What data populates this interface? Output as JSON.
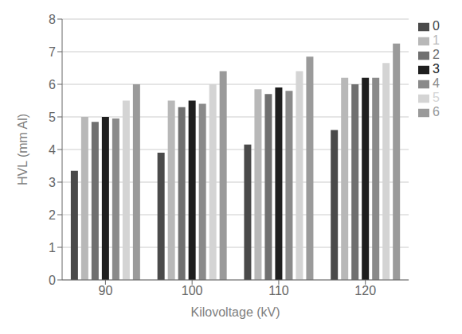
{
  "chart_data": {
    "type": "bar",
    "xlabel": "Kilovoltage (kV)",
    "ylabel": "HVL (mm Al)",
    "categories": [
      "90",
      "100",
      "110",
      "120"
    ],
    "series": [
      {
        "name": "0",
        "color": "#4a4a4a",
        "values": [
          3.35,
          3.9,
          4.15,
          4.6
        ]
      },
      {
        "name": "1",
        "color": "#b8b8b8",
        "values": [
          5.0,
          5.5,
          5.85,
          6.2
        ]
      },
      {
        "name": "2",
        "color": "#707070",
        "values": [
          4.85,
          5.3,
          5.7,
          6.0
        ]
      },
      {
        "name": "3",
        "color": "#1e1e1e",
        "values": [
          5.0,
          5.5,
          5.9,
          6.2
        ]
      },
      {
        "name": "4",
        "color": "#8a8a8a",
        "values": [
          4.95,
          5.4,
          5.8,
          6.2
        ]
      },
      {
        "name": "5",
        "color": "#d4d4d4",
        "values": [
          5.5,
          6.0,
          6.4,
          6.65
        ]
      },
      {
        "name": "6",
        "color": "#9a9a9a",
        "values": [
          6.0,
          6.4,
          6.85,
          7.25
        ]
      }
    ],
    "ylim": [
      0,
      8
    ],
    "yticks": [
      0,
      1,
      2,
      3,
      4,
      5,
      6,
      7,
      8
    ],
    "grid": true,
    "legend": "right"
  }
}
